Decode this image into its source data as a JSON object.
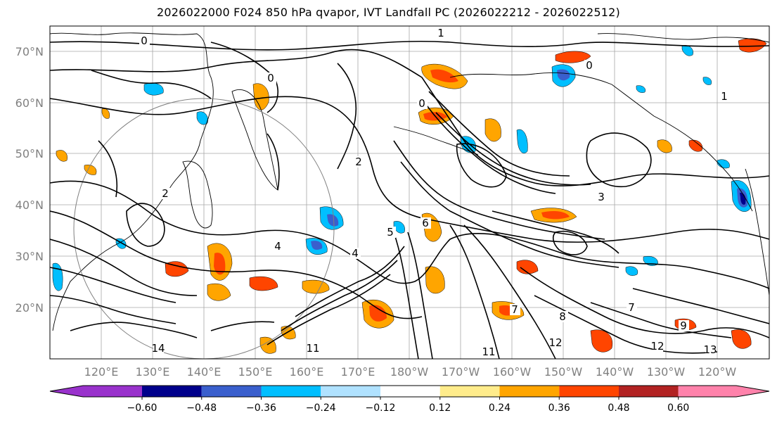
{
  "title": "2026022000 F024 850 hPa qvapor, IVT Landfall PC (2026022212 - 2026022512)",
  "map": {
    "lat_labels": [
      "70°N",
      "60°N",
      "50°N",
      "40°N",
      "30°N",
      "20°N"
    ],
    "lon_labels": [
      "120°E",
      "130°E",
      "140°E",
      "150°E",
      "160°E",
      "170°E",
      "180°W",
      "170°W",
      "160°W",
      "150°W",
      "140°W",
      "130°W",
      "120°W"
    ],
    "contour_labels": [
      "0",
      "0",
      "1",
      "0",
      "0",
      "1",
      "2",
      "2",
      "3",
      "4",
      "4",
      "5",
      "6",
      "7",
      "7",
      "8",
      "9",
      "11",
      "11",
      "12",
      "12",
      "13",
      "14"
    ]
  },
  "colorbar": {
    "colors": [
      "#9932cc",
      "#00008b",
      "#3a5fcd",
      "#00bfff",
      "#b0e2ff",
      "#ffffff",
      "#ffec8b",
      "#ffa500",
      "#ff4500",
      "#b22222",
      "#ff82ab"
    ],
    "tick_labels": [
      "−0.60",
      "−0.48",
      "−0.36",
      "−0.24",
      "−0.12",
      "0.12",
      "0.24",
      "0.36",
      "0.48",
      "0.60"
    ]
  },
  "colors": {
    "land_line": "#000000",
    "grid": "#808080",
    "contour": "#000000"
  }
}
